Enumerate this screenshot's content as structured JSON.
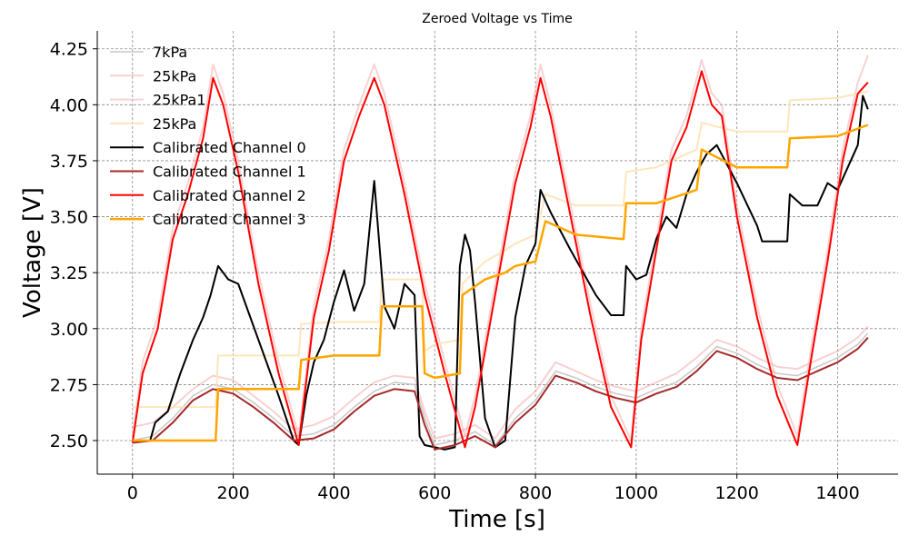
{
  "chart_data": {
    "type": "line",
    "title": "Zeroed Voltage vs Time",
    "xlabel": "Time [s]",
    "ylabel": "Voltage [V]",
    "xlim": [
      -70,
      1520
    ],
    "ylim": [
      2.35,
      4.33
    ],
    "xticks": [
      0,
      200,
      400,
      600,
      800,
      1000,
      1200,
      1400
    ],
    "yticks": [
      2.5,
      2.75,
      3.0,
      3.25,
      3.5,
      3.75,
      4.0,
      4.25
    ],
    "ytick_labels": [
      "2.50",
      "2.75",
      "3.00",
      "3.25",
      "3.50",
      "3.75",
      "4.00",
      "4.25"
    ],
    "grid": true,
    "legend_position": "top-left",
    "series": [
      {
        "name": "7kPa",
        "color": "#c8c8c8",
        "opacity": 1.0,
        "width": 1.5,
        "x": [
          0,
          40,
          80,
          120,
          160,
          200,
          240,
          280,
          320,
          360,
          400,
          440,
          480,
          520,
          560,
          580,
          600,
          640,
          680,
          720,
          760,
          800,
          840,
          880,
          920,
          960,
          1000,
          1040,
          1080,
          1120,
          1160,
          1200,
          1240,
          1280,
          1320,
          1360,
          1400,
          1440,
          1460
        ],
        "y": [
          2.5,
          2.52,
          2.6,
          2.7,
          2.75,
          2.73,
          2.67,
          2.6,
          2.52,
          2.53,
          2.57,
          2.65,
          2.72,
          2.76,
          2.75,
          2.6,
          2.48,
          2.5,
          2.54,
          2.48,
          2.6,
          2.68,
          2.81,
          2.78,
          2.74,
          2.71,
          2.69,
          2.73,
          2.76,
          2.83,
          2.92,
          2.89,
          2.84,
          2.8,
          2.79,
          2.83,
          2.87,
          2.93,
          2.98
        ]
      },
      {
        "name": "25kPa",
        "color": "#ef9a9a",
        "opacity": 0.45,
        "width": 2,
        "x": [
          0,
          40,
          80,
          120,
          160,
          200,
          240,
          280,
          320,
          360,
          400,
          440,
          480,
          520,
          560,
          580,
          600,
          640,
          680,
          720,
          760,
          800,
          840,
          880,
          920,
          960,
          1000,
          1040,
          1080,
          1120,
          1160,
          1200,
          1240,
          1280,
          1320,
          1360,
          1400,
          1440,
          1460
        ],
        "y": [
          2.56,
          2.58,
          2.65,
          2.73,
          2.79,
          2.77,
          2.7,
          2.63,
          2.55,
          2.57,
          2.61,
          2.69,
          2.76,
          2.79,
          2.78,
          2.63,
          2.51,
          2.53,
          2.57,
          2.51,
          2.64,
          2.72,
          2.85,
          2.81,
          2.77,
          2.74,
          2.72,
          2.76,
          2.8,
          2.87,
          2.95,
          2.92,
          2.87,
          2.83,
          2.82,
          2.86,
          2.9,
          2.96,
          3.01
        ]
      },
      {
        "name": "25kPa1",
        "color": "#f4a6a6",
        "opacity": 0.5,
        "width": 2,
        "x": [
          0,
          20,
          50,
          80,
          110,
          140,
          160,
          180,
          210,
          250,
          290,
          330,
          360,
          390,
          420,
          450,
          480,
          500,
          540,
          580,
          620,
          660,
          680,
          720,
          760,
          790,
          810,
          830,
          870,
          910,
          950,
          990,
          1010,
          1040,
          1070,
          1100,
          1130,
          1150,
          1170,
          1200,
          1240,
          1280,
          1320,
          1350,
          1380,
          1410,
          1440,
          1460
        ],
        "y": [
          2.52,
          2.85,
          3.05,
          3.45,
          3.65,
          3.9,
          4.18,
          4.05,
          3.75,
          3.25,
          2.85,
          2.52,
          3.1,
          3.4,
          3.8,
          4.0,
          4.18,
          4.05,
          3.65,
          3.2,
          2.85,
          2.52,
          2.7,
          3.2,
          3.7,
          3.95,
          4.18,
          4.0,
          3.55,
          3.1,
          2.7,
          2.5,
          3.0,
          3.4,
          3.8,
          3.95,
          4.2,
          4.05,
          4.0,
          3.55,
          3.1,
          2.75,
          2.52,
          2.95,
          3.35,
          3.8,
          4.1,
          4.22
        ]
      },
      {
        "name": "25kPa",
        "color": "#fde3b5",
        "opacity": 0.9,
        "width": 2,
        "x": [
          0,
          165,
          170,
          330,
          335,
          400,
          490,
          495,
          575,
          580,
          600,
          650,
          655,
          700,
          740,
          760,
          800,
          820,
          880,
          975,
          980,
          1040,
          1120,
          1130,
          1200,
          1300,
          1305,
          1400,
          1460
        ],
        "y": [
          2.65,
          2.65,
          2.88,
          2.88,
          3.02,
          3.03,
          3.03,
          3.22,
          3.22,
          2.9,
          2.93,
          2.95,
          3.2,
          3.3,
          3.35,
          3.38,
          3.42,
          3.6,
          3.55,
          3.55,
          3.7,
          3.72,
          3.8,
          3.92,
          3.88,
          3.88,
          4.02,
          4.03,
          4.06
        ]
      },
      {
        "name": "Calibrated Channel 0",
        "color": "#000000",
        "opacity": 1.0,
        "width": 2,
        "x": [
          0,
          35,
          45,
          70,
          95,
          120,
          140,
          155,
          170,
          190,
          210,
          250,
          290,
          320,
          330,
          345,
          360,
          380,
          400,
          420,
          440,
          460,
          480,
          500,
          520,
          540,
          560,
          570,
          580,
          600,
          620,
          640,
          650,
          660,
          670,
          680,
          700,
          720,
          740,
          760,
          780,
          800,
          810,
          830,
          870,
          920,
          950,
          975,
          980,
          1000,
          1020,
          1040,
          1060,
          1080,
          1100,
          1120,
          1140,
          1160,
          1200,
          1240,
          1250,
          1300,
          1305,
          1330,
          1360,
          1380,
          1400,
          1420,
          1440,
          1450,
          1460
        ],
        "y": [
          2.5,
          2.5,
          2.58,
          2.63,
          2.8,
          2.95,
          3.05,
          3.15,
          3.28,
          3.22,
          3.2,
          2.95,
          2.7,
          2.5,
          2.48,
          2.7,
          2.85,
          2.95,
          3.12,
          3.26,
          3.08,
          3.2,
          3.66,
          3.1,
          3.0,
          3.2,
          3.15,
          2.52,
          2.48,
          2.47,
          2.46,
          2.47,
          3.28,
          3.42,
          3.35,
          3.12,
          2.6,
          2.47,
          2.5,
          3.05,
          3.28,
          3.38,
          3.62,
          3.52,
          3.35,
          3.15,
          3.06,
          3.06,
          3.28,
          3.22,
          3.24,
          3.4,
          3.5,
          3.45,
          3.6,
          3.7,
          3.78,
          3.82,
          3.65,
          3.46,
          3.39,
          3.39,
          3.6,
          3.55,
          3.55,
          3.65,
          3.62,
          3.72,
          3.82,
          4.04,
          3.98
        ]
      },
      {
        "name": "Calibrated Channel 1",
        "color": "#a52a2a",
        "opacity": 1.0,
        "width": 2,
        "x": [
          0,
          40,
          80,
          120,
          160,
          200,
          240,
          280,
          320,
          360,
          400,
          440,
          480,
          520,
          560,
          580,
          600,
          640,
          680,
          720,
          760,
          800,
          840,
          880,
          920,
          960,
          1000,
          1040,
          1080,
          1120,
          1160,
          1200,
          1240,
          1280,
          1320,
          1360,
          1400,
          1440,
          1460
        ],
        "y": [
          2.49,
          2.5,
          2.58,
          2.68,
          2.73,
          2.71,
          2.65,
          2.58,
          2.5,
          2.51,
          2.55,
          2.63,
          2.7,
          2.73,
          2.72,
          2.57,
          2.46,
          2.48,
          2.52,
          2.47,
          2.58,
          2.66,
          2.79,
          2.76,
          2.72,
          2.69,
          2.67,
          2.71,
          2.74,
          2.81,
          2.9,
          2.87,
          2.82,
          2.78,
          2.77,
          2.81,
          2.85,
          2.91,
          2.96
        ]
      },
      {
        "name": "Calibrated Channel 2",
        "color": "#ff0000",
        "opacity": 1.0,
        "width": 2,
        "x": [
          0,
          20,
          50,
          80,
          110,
          140,
          160,
          180,
          210,
          250,
          290,
          330,
          360,
          390,
          420,
          450,
          480,
          500,
          540,
          580,
          620,
          660,
          680,
          720,
          760,
          790,
          810,
          830,
          870,
          910,
          950,
          990,
          1010,
          1040,
          1070,
          1100,
          1130,
          1150,
          1170,
          1200,
          1240,
          1280,
          1320,
          1350,
          1380,
          1410,
          1440,
          1460
        ],
        "y": [
          2.49,
          2.8,
          3.0,
          3.4,
          3.6,
          3.85,
          4.12,
          4.0,
          3.7,
          3.2,
          2.8,
          2.48,
          3.05,
          3.35,
          3.75,
          3.95,
          4.12,
          4.0,
          3.6,
          3.15,
          2.8,
          2.47,
          2.65,
          3.15,
          3.65,
          3.9,
          4.12,
          3.95,
          3.5,
          3.05,
          2.65,
          2.47,
          2.95,
          3.35,
          3.75,
          3.9,
          4.15,
          4.0,
          3.95,
          3.5,
          3.05,
          2.7,
          2.48,
          2.9,
          3.3,
          3.75,
          4.05,
          4.1
        ]
      },
      {
        "name": "Calibrated Channel 3",
        "color": "#ffa500",
        "opacity": 1.0,
        "width": 2.5,
        "x": [
          0,
          165,
          170,
          330,
          335,
          400,
          490,
          495,
          575,
          580,
          600,
          650,
          655,
          700,
          740,
          760,
          800,
          820,
          880,
          975,
          980,
          1040,
          1120,
          1130,
          1200,
          1300,
          1305,
          1400,
          1460
        ],
        "y": [
          2.5,
          2.5,
          2.73,
          2.73,
          2.86,
          2.88,
          2.88,
          3.1,
          3.1,
          2.8,
          2.78,
          2.8,
          3.15,
          3.22,
          3.25,
          3.28,
          3.3,
          3.48,
          3.42,
          3.4,
          3.56,
          3.56,
          3.62,
          3.8,
          3.72,
          3.72,
          3.85,
          3.86,
          3.91
        ]
      }
    ]
  }
}
